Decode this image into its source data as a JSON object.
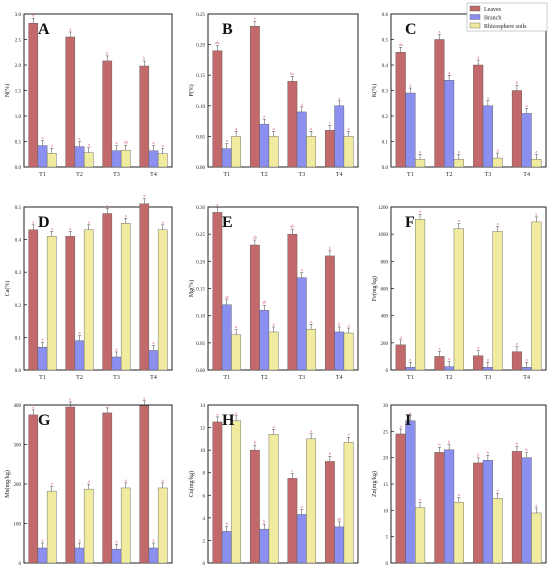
{
  "colors": {
    "leaves": "#c2696b",
    "branch": "#8b8ff0",
    "soil": "#f1eba0",
    "letter": "#d3568f",
    "axis": "#222222"
  },
  "legend": [
    "Leaves",
    "Branch",
    "Rhizosphere soils"
  ],
  "chart_data": [
    {
      "type": "bar",
      "panel": "A",
      "ylabel": "N(%)",
      "categories": [
        "T1",
        "T2",
        "T3",
        "T4"
      ],
      "ylim": [
        0,
        3.0
      ],
      "yticks": [
        0,
        0.5,
        1.0,
        1.5,
        2.0,
        2.5,
        3.0
      ],
      "tickfmt": 1,
      "series": [
        {
          "name": "Leaves",
          "values": [
            2.82,
            2.55,
            2.08,
            1.98
          ],
          "letters": [
            "a",
            "a",
            "b",
            "b"
          ]
        },
        {
          "name": "Branch",
          "values": [
            0.42,
            0.4,
            0.32,
            0.32
          ],
          "letters": [
            "a",
            "a",
            "a",
            "a"
          ]
        },
        {
          "name": "Rhizosphere soils",
          "values": [
            0.27,
            0.28,
            0.33,
            0.26
          ],
          "letters": [
            "a",
            "a",
            "ab",
            "a"
          ]
        }
      ]
    },
    {
      "type": "bar",
      "panel": "B",
      "ylabel": "P(%)",
      "categories": [
        "T1",
        "T2",
        "T3",
        "T4"
      ],
      "ylim": [
        0,
        0.25
      ],
      "yticks": [
        0,
        0.05,
        0.1,
        0.15,
        0.2,
        0.25
      ],
      "tickfmt": 2,
      "series": [
        {
          "name": "Leaves",
          "values": [
            0.19,
            0.23,
            0.14,
            0.06
          ],
          "letters": [
            "ab",
            "a",
            "bc",
            "c"
          ]
        },
        {
          "name": "Branch",
          "values": [
            0.03,
            0.07,
            0.09,
            0.1
          ],
          "letters": [
            "a",
            "a",
            "a",
            "a"
          ]
        },
        {
          "name": "Rhizosphere soils",
          "values": [
            0.05,
            0.05,
            0.05,
            0.05
          ],
          "letters": [
            "a",
            "a",
            "a",
            "a"
          ]
        }
      ]
    },
    {
      "type": "bar",
      "panel": "C",
      "ylabel": "K(%)",
      "categories": [
        "T1",
        "T2",
        "T3",
        "T4"
      ],
      "ylim": [
        0,
        0.6
      ],
      "yticks": [
        0,
        0.1,
        0.2,
        0.3,
        0.4,
        0.5,
        0.6
      ],
      "tickfmt": 1,
      "series": [
        {
          "name": "Leaves",
          "values": [
            0.45,
            0.5,
            0.4,
            0.3
          ],
          "letters": [
            "ab",
            "a",
            "a",
            "b"
          ]
        },
        {
          "name": "Branch",
          "values": [
            0.29,
            0.34,
            0.24,
            0.21
          ],
          "letters": [
            "a",
            "a",
            "a",
            "a"
          ]
        },
        {
          "name": "Rhizosphere soils",
          "values": [
            0.03,
            0.03,
            0.035,
            0.03
          ],
          "letters": [
            "a",
            "a",
            "a",
            "a"
          ]
        }
      ]
    },
    {
      "type": "bar",
      "panel": "D",
      "ylabel": "Ca(%)",
      "categories": [
        "T1",
        "T2",
        "T3",
        "T4"
      ],
      "ylim": [
        0,
        0.5
      ],
      "yticks": [
        0,
        0.1,
        0.2,
        0.3,
        0.4,
        0.5
      ],
      "tickfmt": 1,
      "series": [
        {
          "name": "Leaves",
          "values": [
            0.43,
            0.41,
            0.48,
            0.51
          ],
          "letters": [
            "a",
            "a",
            "a",
            "a"
          ]
        },
        {
          "name": "Branch",
          "values": [
            0.07,
            0.09,
            0.04,
            0.06
          ],
          "letters": [
            "a",
            "a",
            "a",
            "a"
          ]
        },
        {
          "name": "Rhizosphere soils",
          "values": [
            0.41,
            0.43,
            0.45,
            0.43
          ],
          "letters": [
            "a",
            "a",
            "a",
            "a"
          ]
        }
      ]
    },
    {
      "type": "bar",
      "panel": "E",
      "ylabel": "Mg(%)",
      "categories": [
        "T1",
        "T2",
        "T3",
        "T4"
      ],
      "ylim": [
        0,
        0.3
      ],
      "yticks": [
        0,
        0.05,
        0.1,
        0.15,
        0.2,
        0.25,
        0.3
      ],
      "tickfmt": 2,
      "series": [
        {
          "name": "Leaves",
          "values": [
            0.29,
            0.23,
            0.25,
            0.21
          ],
          "letters": [
            "a",
            "ab",
            "ab",
            "b"
          ]
        },
        {
          "name": "Branch",
          "values": [
            0.12,
            0.11,
            0.17,
            0.07
          ],
          "letters": [
            "ab",
            "ab",
            "a",
            "b"
          ]
        },
        {
          "name": "Rhizosphere soils",
          "values": [
            0.065,
            0.07,
            0.075,
            0.068
          ],
          "letters": [
            "a",
            "a",
            "a",
            "a"
          ]
        }
      ]
    },
    {
      "type": "bar",
      "panel": "F",
      "ylabel": "Fe(mg/kg)",
      "categories": [
        "T1",
        "T2",
        "T3",
        "T4"
      ],
      "ylim": [
        0,
        1200
      ],
      "yticks": [
        0,
        200,
        400,
        600,
        800,
        1000,
        1200
      ],
      "tickfmt": 0,
      "series": [
        {
          "name": "Leaves",
          "values": [
            185,
            100,
            105,
            135
          ],
          "letters": [
            "a",
            "a",
            "a",
            "a"
          ]
        },
        {
          "name": "Branch",
          "values": [
            20,
            25,
            20,
            20
          ],
          "letters": [
            "a",
            "a",
            "a",
            "a"
          ]
        },
        {
          "name": "Rhizosphere soils",
          "values": [
            1110,
            1040,
            1020,
            1090
          ],
          "letters": [
            "a",
            "a",
            "a",
            "a"
          ]
        }
      ]
    },
    {
      "type": "bar",
      "panel": "G",
      "ylabel": "Mn(mg/kg)",
      "categories": [
        "T1",
        "T2",
        "T3",
        "T4"
      ],
      "ylim": [
        0,
        400
      ],
      "yticks": [
        0,
        100,
        200,
        300,
        400
      ],
      "tickfmt": 0,
      "series": [
        {
          "name": "Leaves",
          "values": [
            375,
            395,
            380,
            398
          ],
          "letters": [
            "a",
            "a",
            "a",
            "a"
          ]
        },
        {
          "name": "Branch",
          "values": [
            38,
            38,
            35,
            38
          ],
          "letters": [
            "a",
            "a",
            "a",
            "a"
          ]
        },
        {
          "name": "Rhizosphere soils",
          "values": [
            182,
            187,
            190,
            190
          ],
          "letters": [
            "a",
            "a",
            "a",
            "a"
          ]
        }
      ]
    },
    {
      "type": "bar",
      "panel": "H",
      "ylabel": "Cu(mg/kg)",
      "categories": [
        "T1",
        "T2",
        "T3",
        "T4"
      ],
      "ylim": [
        0,
        14
      ],
      "yticks": [
        0,
        2,
        4,
        6,
        8,
        10,
        12,
        14
      ],
      "tickfmt": 0,
      "series": [
        {
          "name": "Leaves",
          "values": [
            12.5,
            10.0,
            7.5,
            9.0
          ],
          "letters": [
            "a",
            "b",
            "c",
            "b"
          ]
        },
        {
          "name": "Branch",
          "values": [
            2.8,
            3.0,
            4.3,
            3.2
          ],
          "letters": [
            "b",
            "b",
            "a",
            "ab"
          ]
        },
        {
          "name": "Rhizosphere soils",
          "values": [
            12.6,
            11.4,
            11.0,
            10.7
          ],
          "letters": [
            "a",
            "a",
            "a",
            "a"
          ]
        }
      ]
    },
    {
      "type": "bar",
      "panel": "I",
      "ylabel": "Zn(mg/kg)",
      "categories": [
        "T1",
        "T2",
        "T3",
        "T4"
      ],
      "ylim": [
        0,
        30
      ],
      "yticks": [
        0,
        5,
        10,
        15,
        20,
        25,
        30
      ],
      "tickfmt": 0,
      "series": [
        {
          "name": "Leaves",
          "values": [
            24.5,
            21.0,
            19.0,
            21.2
          ],
          "letters": [
            "a",
            "b",
            "b",
            "b"
          ]
        },
        {
          "name": "Branch",
          "values": [
            27.0,
            21.5,
            19.5,
            20.0
          ],
          "letters": [
            "a",
            "b",
            "b",
            "b"
          ]
        },
        {
          "name": "Rhizosphere soils",
          "values": [
            10.5,
            11.5,
            12.3,
            9.5
          ],
          "letters": [
            "a",
            "a",
            "a",
            "a"
          ]
        }
      ]
    }
  ]
}
